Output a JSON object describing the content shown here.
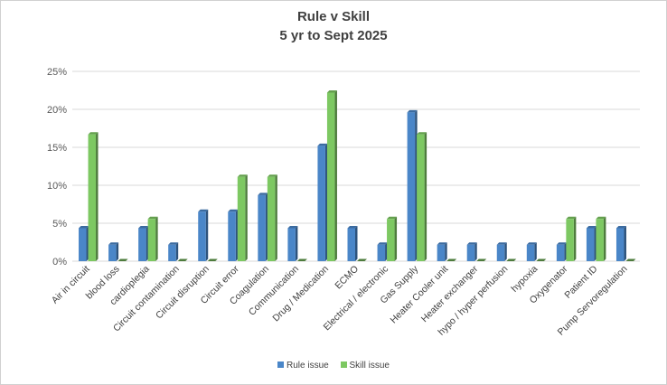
{
  "chart_data": {
    "type": "bar",
    "title": "Rule v Skill",
    "subtitle": "5 yr  to Sept 2025",
    "categories": [
      "Air in circuit",
      "blood loss",
      "cardioplegia",
      "Circuit contamination",
      "Circuit disruption",
      "Circuit error",
      "Coagulation",
      "Communication",
      "Drug / Medication",
      "ECMO",
      "Electrical / electronic",
      "Gas Supply",
      "Heater Cooler unit",
      "Heater exchanger",
      "hypo / hyper perfusion",
      "hypoxia",
      "Oxygenator",
      "Patient ID",
      "Pump Servoregulation"
    ],
    "series": [
      {
        "name": "Rule issue",
        "color": "#4a86c8",
        "values": [
          4.35,
          2.17,
          4.35,
          2.17,
          6.52,
          6.52,
          8.7,
          4.35,
          15.2,
          4.35,
          2.17,
          19.6,
          2.17,
          2.17,
          2.17,
          2.17,
          2.17,
          4.35,
          4.35
        ]
      },
      {
        "name": "Skill issue",
        "color": "#7dc862",
        "values": [
          16.7,
          0,
          5.56,
          0,
          0,
          11.1,
          11.1,
          0,
          22.2,
          0,
          5.56,
          16.7,
          0,
          0,
          0,
          0,
          5.56,
          5.56,
          0
        ]
      }
    ],
    "y_ticks": [
      "0%",
      "5%",
      "10%",
      "15%",
      "20%",
      "25%"
    ],
    "ylim": [
      0,
      25
    ],
    "grid": true,
    "legend_position": "bottom"
  }
}
